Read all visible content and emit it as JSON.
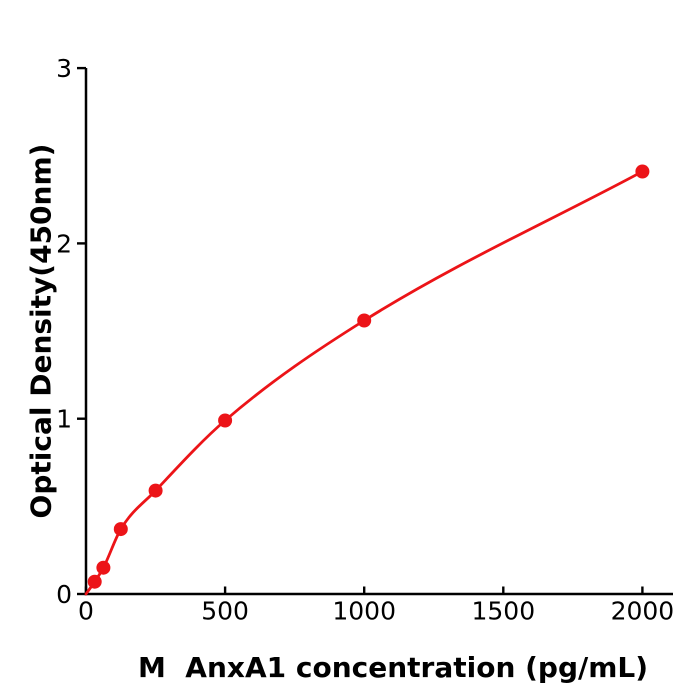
{
  "figure": {
    "background": "#ffffff"
  },
  "chart_data": {
    "type": "scatter",
    "title": "",
    "xlabel": "M  AnxA1 concentration (pg/mL)",
    "ylabel": "Optical Density(450nm)",
    "x": [
      31.25,
      62.5,
      125,
      250,
      500,
      1000,
      2000
    ],
    "y": [
      0.07,
      0.15,
      0.37,
      0.59,
      0.99,
      1.56,
      2.41
    ],
    "fit_curve": {
      "anchors_x": [
        0,
        31.25,
        62.5,
        125,
        250,
        500,
        1000,
        2000
      ],
      "anchors_y": [
        0.0,
        0.07,
        0.15,
        0.37,
        0.59,
        0.99,
        1.56,
        2.41
      ]
    },
    "xticks": [
      0,
      500,
      1000,
      1500,
      2000
    ],
    "yticks": [
      0,
      1,
      2,
      3
    ],
    "xlim": [
      0,
      2110
    ],
    "ylim": [
      0,
      3
    ],
    "grid": false,
    "legend_position": "none",
    "marker_color": "#ec1418",
    "line_color": "#ec1418",
    "axis_color": "#000000",
    "tick_label_color": "#000000"
  }
}
